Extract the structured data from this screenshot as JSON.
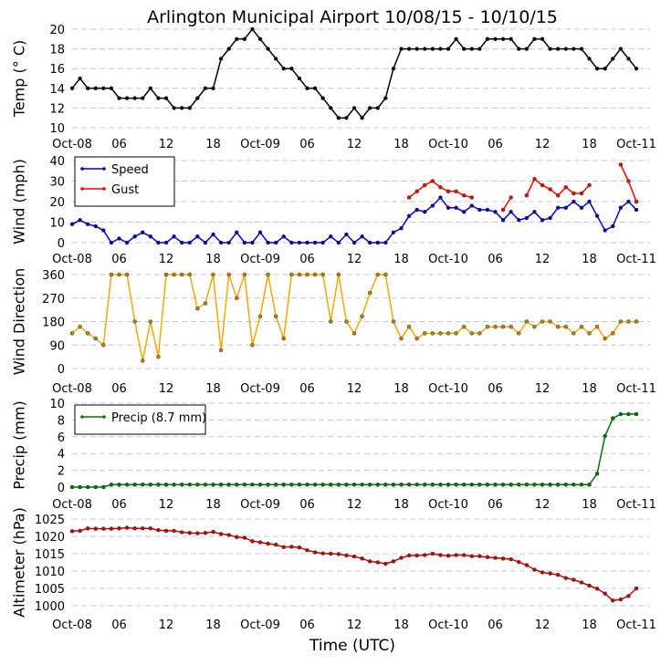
{
  "chart_data": {
    "type": "line",
    "title": "Arlington Municipal Airport 10/08/15 - 10/10/15",
    "xlabel": "Time (UTC)",
    "xticks": [
      "Oct-08",
      "06",
      "12",
      "18",
      "Oct-09",
      "06",
      "12",
      "18",
      "Oct-10",
      "06",
      "12",
      "18",
      "Oct-11"
    ],
    "xlim": [
      "2015-10-08 00:00",
      "2015-10-11 00:00"
    ],
    "x": [
      "10/08 00",
      "10/08 01",
      "10/08 02",
      "10/08 03",
      "10/08 04",
      "10/08 05",
      "10/08 06",
      "10/08 07",
      "10/08 08",
      "10/08 09",
      "10/08 10",
      "10/08 11",
      "10/08 12",
      "10/08 13",
      "10/08 14",
      "10/08 15",
      "10/08 16",
      "10/08 17",
      "10/08 18",
      "10/08 19",
      "10/08 20",
      "10/08 21",
      "10/08 22",
      "10/08 23",
      "10/09 00",
      "10/09 01",
      "10/09 02",
      "10/09 03",
      "10/09 04",
      "10/09 05",
      "10/09 06",
      "10/09 07",
      "10/09 08",
      "10/09 09",
      "10/09 10",
      "10/09 11",
      "10/09 12",
      "10/09 13",
      "10/09 14",
      "10/09 15",
      "10/09 16",
      "10/09 17",
      "10/09 18",
      "10/09 19",
      "10/09 20",
      "10/09 21",
      "10/09 22",
      "10/09 23",
      "10/10 00",
      "10/10 01",
      "10/10 02",
      "10/10 03",
      "10/10 04",
      "10/10 05",
      "10/10 06",
      "10/10 07",
      "10/10 08",
      "10/10 09",
      "10/10 10",
      "10/10 11",
      "10/10 12",
      "10/10 13",
      "10/10 14",
      "10/10 15",
      "10/10 16",
      "10/10 17",
      "10/10 18",
      "10/10 19",
      "10/10 20",
      "10/10 21",
      "10/10 22",
      "10/10 23",
      "10/11 00"
    ],
    "grid": "horizontal dashed",
    "panels": [
      {
        "ylabel": "Temp ($^\\circ$C)",
        "ylabel_display": "Temp (° C)",
        "ylim": [
          10,
          20
        ],
        "yticks": [
          "10",
          "12",
          "14",
          "16",
          "18",
          "20"
        ],
        "series": [
          {
            "color": "#000000",
            "values": [
              14,
              15,
              14,
              14,
              14,
              14,
              13,
              13,
              13,
              13,
              14,
              13,
              13,
              12,
              12,
              12,
              13,
              14,
              14,
              17,
              18,
              19,
              19,
              20,
              19,
              18,
              17,
              16,
              16,
              15,
              14,
              14,
              13,
              12,
              11,
              11,
              12,
              11,
              12,
              12,
              13,
              16,
              18,
              18,
              18,
              18,
              18,
              18,
              18,
              19,
              18,
              18,
              18,
              19,
              19,
              19,
              19,
              18,
              18,
              19,
              19,
              18,
              18,
              18,
              18,
              18,
              17,
              16,
              16,
              17,
              18,
              17,
              16
            ]
          }
        ]
      },
      {
        "ylabel": "Wind (mph)",
        "ylim": [
          0,
          40
        ],
        "yticks": [
          "0",
          "10",
          "20",
          "30",
          "40"
        ],
        "legend": "top-left",
        "series": [
          {
            "name": "Speed",
            "color": "#0000cc",
            "values": [
              9,
              11,
              9,
              8,
              6,
              0,
              2,
              0,
              3,
              5,
              3,
              0,
              0,
              3,
              0,
              0,
              3,
              0,
              4,
              0,
              0,
              5,
              0,
              0,
              5,
              0,
              0,
              3,
              0,
              0,
              0,
              0,
              0,
              3,
              0,
              4,
              0,
              3,
              0,
              0,
              0,
              5,
              7,
              13,
              16,
              15,
              18,
              22,
              17,
              17,
              15,
              18,
              16,
              16,
              15,
              11,
              15,
              11,
              12,
              15,
              11,
              12,
              17,
              17,
              20,
              17,
              20,
              13,
              6,
              8,
              17,
              20,
              16
            ]
          },
          {
            "name": "Gust",
            "color": "#ff0000",
            "values": [
              null,
              null,
              null,
              null,
              null,
              null,
              null,
              null,
              null,
              null,
              null,
              null,
              null,
              null,
              null,
              null,
              null,
              null,
              null,
              null,
              null,
              null,
              null,
              null,
              null,
              null,
              null,
              null,
              null,
              null,
              null,
              null,
              null,
              null,
              null,
              null,
              null,
              null,
              null,
              null,
              null,
              null,
              null,
              22,
              25,
              28,
              30,
              27,
              25,
              25,
              23,
              22,
              null,
              null,
              null,
              16,
              22,
              null,
              23,
              31,
              28,
              26,
              23,
              27,
              24,
              24,
              28,
              null,
              null,
              null,
              38,
              30,
              20
            ]
          }
        ]
      },
      {
        "ylabel": "Wind Direction",
        "ylim": [
          0,
          360
        ],
        "yticks": [
          "0",
          "90",
          "180",
          "270",
          "360"
        ],
        "series": [
          {
            "color": "#ffa500",
            "values": [
              135,
              160,
              135,
              115,
              90,
              360,
              360,
              360,
              180,
              30,
              180,
              45,
              360,
              360,
              360,
              360,
              230,
              250,
              360,
              70,
              360,
              270,
              360,
              90,
              200,
              360,
              200,
              115,
              360,
              360,
              360,
              360,
              360,
              180,
              360,
              180,
              135,
              200,
              290,
              360,
              360,
              180,
              115,
              160,
              115,
              135,
              135,
              135,
              135,
              135,
              160,
              135,
              135,
              160,
              160,
              160,
              160,
              135,
              180,
              160,
              180,
              180,
              160,
              160,
              135,
              160,
              135,
              160,
              115,
              135,
              180,
              180,
              180
            ]
          }
        ]
      },
      {
        "ylabel": "Precip (mm)",
        "ylim": [
          0,
          10
        ],
        "yticks": [
          "0",
          "2",
          "4",
          "6",
          "8",
          "10"
        ],
        "legend": "top-left",
        "series": [
          {
            "name": "Precip (8.7 mm)",
            "color": "#007700",
            "values": [
              0,
              0,
              0,
              0,
              0,
              0.3,
              0.3,
              0.3,
              0.3,
              0.3,
              0.3,
              0.3,
              0.3,
              0.3,
              0.3,
              0.3,
              0.3,
              0.3,
              0.3,
              0.3,
              0.3,
              0.3,
              0.3,
              0.3,
              0.3,
              0.3,
              0.3,
              0.3,
              0.3,
              0.3,
              0.3,
              0.3,
              0.3,
              0.3,
              0.3,
              0.3,
              0.3,
              0.3,
              0.3,
              0.3,
              0.3,
              0.3,
              0.3,
              0.3,
              0.3,
              0.3,
              0.3,
              0.3,
              0.3,
              0.3,
              0.3,
              0.3,
              0.3,
              0.3,
              0.3,
              0.3,
              0.3,
              0.3,
              0.3,
              0.3,
              0.3,
              0.3,
              0.3,
              0.3,
              0.3,
              0.3,
              0.3,
              1.6,
              6.1,
              8.2,
              8.7,
              8.7,
              8.7
            ]
          }
        ]
      },
      {
        "ylabel": "Altimeter (hPa)",
        "ylim": [
          998,
          1025
        ],
        "yticks": [
          "1000",
          "1005",
          "1010",
          "1015",
          "1020",
          "1025"
        ],
        "series": [
          {
            "color": "#cc0000",
            "values": [
              1021.5,
              1021.6,
              1022.3,
              1022.2,
              1022.2,
              1022.2,
              1022.3,
              1022.5,
              1022.3,
              1022.3,
              1022.3,
              1021.8,
              1021.6,
              1021.6,
              1021.2,
              1021.0,
              1020.9,
              1021.0,
              1021.3,
              1020.7,
              1020.4,
              1019.8,
              1019.6,
              1018.6,
              1018.3,
              1017.9,
              1017.6,
              1016.9,
              1017.0,
              1016.8,
              1016.0,
              1015.4,
              1015.1,
              1015.0,
              1014.9,
              1014.5,
              1014.2,
              1013.6,
              1012.8,
              1012.5,
              1012.1,
              1012.8,
              1013.8,
              1014.5,
              1014.5,
              1014.6,
              1015.0,
              1014.6,
              1014.4,
              1014.6,
              1014.6,
              1014.3,
              1014.3,
              1014.0,
              1013.8,
              1013.6,
              1013.4,
              1012.6,
              1011.7,
              1010.4,
              1009.6,
              1009.3,
              1008.9,
              1008.0,
              1007.5,
              1006.7,
              1005.8,
              1004.9,
              1003.5,
              1001.5,
              1001.8,
              1002.8,
              1005.0
            ]
          }
        ]
      }
    ]
  }
}
